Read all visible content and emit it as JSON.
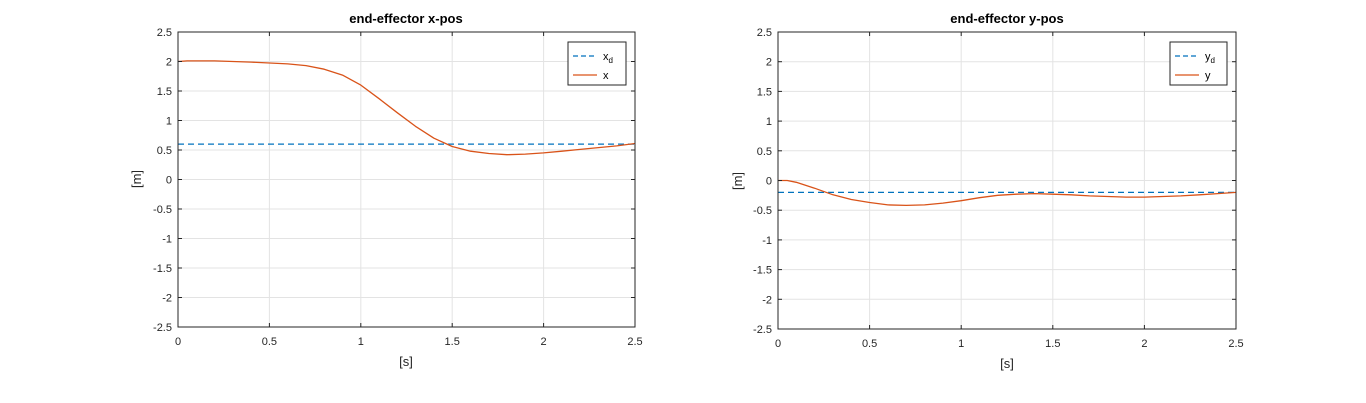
{
  "chart_data": [
    {
      "type": "line",
      "title": "end-effector x-pos",
      "xlabel": "[s]",
      "ylabel": "[m]",
      "xlim": [
        0,
        2.5
      ],
      "ylim": [
        -2.5,
        2.5
      ],
      "xticks": [
        "0",
        "0.5",
        "1",
        "1.5",
        "2",
        "2.5"
      ],
      "yticks": [
        "2.5",
        "2",
        "1.5",
        "1",
        "0.5",
        "0",
        "-0.5",
        "-1",
        "-1.5",
        "-2",
        "-2.5"
      ],
      "grid": true,
      "legend_position": "top-right",
      "series": [
        {
          "name": "x",
          "subscript": "d",
          "style": "dashed",
          "color": "#0072BD",
          "x": [
            0,
            2.5
          ],
          "y": [
            0.6,
            0.6
          ]
        },
        {
          "name": "x",
          "style": "solid",
          "color": "#D95319",
          "x": [
            0,
            0.05,
            0.2,
            0.4,
            0.6,
            0.7,
            0.8,
            0.9,
            1.0,
            1.1,
            1.2,
            1.3,
            1.4,
            1.5,
            1.6,
            1.7,
            1.8,
            1.9,
            2.0,
            2.1,
            2.2,
            2.3,
            2.4,
            2.5
          ],
          "y": [
            2.0,
            2.01,
            2.01,
            1.99,
            1.96,
            1.93,
            1.87,
            1.77,
            1.6,
            1.37,
            1.13,
            0.9,
            0.7,
            0.56,
            0.48,
            0.44,
            0.42,
            0.43,
            0.45,
            0.48,
            0.51,
            0.54,
            0.57,
            0.61
          ]
        }
      ]
    },
    {
      "type": "line",
      "title": "end-effector y-pos",
      "xlabel": "[s]",
      "ylabel": "[m]",
      "xlim": [
        0,
        2.5
      ],
      "ylim": [
        -2.5,
        2.5
      ],
      "xticks": [
        "0",
        "0.5",
        "1",
        "1.5",
        "2",
        "2.5"
      ],
      "yticks": [
        "2.5",
        "2",
        "1.5",
        "1",
        "0.5",
        "0",
        "-0.5",
        "-1",
        "-1.5",
        "-2",
        "-2.5"
      ],
      "grid": true,
      "legend_position": "top-right",
      "series": [
        {
          "name": "y",
          "subscript": "d",
          "style": "dashed",
          "color": "#0072BD",
          "x": [
            0,
            2.5
          ],
          "y": [
            -0.2,
            -0.2
          ]
        },
        {
          "name": "y",
          "style": "solid",
          "color": "#D95319",
          "x": [
            0,
            0.05,
            0.1,
            0.2,
            0.3,
            0.4,
            0.5,
            0.6,
            0.7,
            0.8,
            0.9,
            1.0,
            1.1,
            1.2,
            1.3,
            1.4,
            1.5,
            1.6,
            1.7,
            1.8,
            1.9,
            2.0,
            2.1,
            2.2,
            2.3,
            2.4,
            2.5
          ],
          "y": [
            0.0,
            0.0,
            -0.03,
            -0.13,
            -0.24,
            -0.32,
            -0.37,
            -0.41,
            -0.42,
            -0.41,
            -0.38,
            -0.34,
            -0.29,
            -0.25,
            -0.23,
            -0.22,
            -0.23,
            -0.24,
            -0.26,
            -0.27,
            -0.28,
            -0.28,
            -0.27,
            -0.26,
            -0.24,
            -0.22,
            -0.2
          ]
        }
      ]
    }
  ]
}
